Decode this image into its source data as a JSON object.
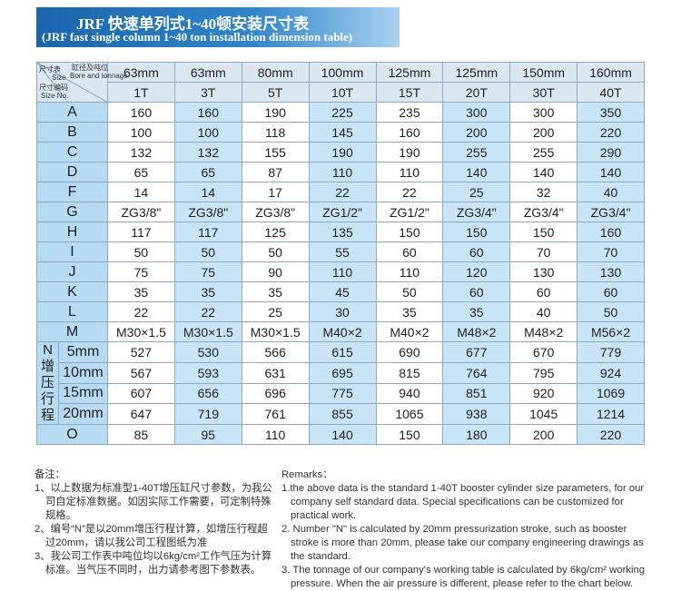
{
  "header": {
    "title": "JRF 快速单列式1~40顿安装尺寸表",
    "subtitle": "(JRF fast single column 1~40 ton installation dimension table)"
  },
  "table": {
    "corner": {
      "size_cn": "尺寸表",
      "size_en": "Size",
      "bore_cn": "缸径及吨位",
      "bore_en": "Bore and tonnage",
      "code_cn": "尺寸编码",
      "code_en": "Size No."
    },
    "bores": [
      "63mm",
      "63mm",
      "80mm",
      "100mm",
      "125mm",
      "125mm",
      "150mm",
      "160mm"
    ],
    "tonnages": [
      "1T",
      "3T",
      "5T",
      "10T",
      "15T",
      "20T",
      "30T",
      "40T"
    ],
    "rows": [
      {
        "label": "A",
        "values": [
          160,
          160,
          190,
          225,
          235,
          300,
          300,
          350
        ]
      },
      {
        "label": "B",
        "values": [
          100,
          100,
          118,
          145,
          160,
          200,
          200,
          220
        ]
      },
      {
        "label": "C",
        "values": [
          132,
          132,
          155,
          190,
          190,
          255,
          255,
          290
        ]
      },
      {
        "label": "D",
        "values": [
          65,
          65,
          87,
          110,
          110,
          140,
          140,
          140
        ]
      },
      {
        "label": "F",
        "values": [
          14,
          14,
          17,
          22,
          22,
          25,
          32,
          40
        ]
      },
      {
        "label": "G",
        "values": [
          "ZG3/8\"",
          "ZG3/8\"",
          "ZG3/8\"",
          "ZG1/2\"",
          "ZG1/2\"",
          "ZG3/4\"",
          "ZG3/4\"",
          "ZG3/4\""
        ]
      },
      {
        "label": "H",
        "values": [
          117,
          117,
          125,
          135,
          150,
          150,
          150,
          160
        ]
      },
      {
        "label": "I",
        "values": [
          50,
          50,
          50,
          55,
          60,
          60,
          70,
          70
        ]
      },
      {
        "label": "J",
        "values": [
          75,
          75,
          90,
          110,
          110,
          120,
          130,
          130
        ]
      },
      {
        "label": "K",
        "values": [
          35,
          35,
          35,
          45,
          50,
          60,
          60,
          60
        ]
      },
      {
        "label": "L",
        "values": [
          22,
          22,
          25,
          30,
          35,
          35,
          40,
          50
        ]
      },
      {
        "label": "M",
        "values": [
          "M30×1.5",
          "M30×1.5",
          "M30×1.5",
          "M40×2",
          "M40×2",
          "M48×2",
          "M48×2",
          "M56×2"
        ]
      }
    ],
    "stroke_group": {
      "label": "N增压行程",
      "rows": [
        {
          "label": "5mm",
          "values": [
            527,
            530,
            566,
            615,
            690,
            677,
            670,
            779
          ]
        },
        {
          "label": "10mm",
          "values": [
            567,
            593,
            631,
            695,
            815,
            764,
            795,
            924
          ]
        },
        {
          "label": "15mm",
          "values": [
            607,
            656,
            696,
            775,
            940,
            851,
            920,
            1069
          ]
        },
        {
          "label": "20mm",
          "values": [
            647,
            719,
            761,
            855,
            1065,
            938,
            1045,
            1214
          ]
        }
      ]
    },
    "last_row": {
      "label": "O",
      "values": [
        85,
        95,
        110,
        140,
        150,
        180,
        200,
        220
      ]
    }
  },
  "notes_cn": {
    "title": "备注：",
    "items": [
      "1、以上数据为标准型1-40T增压缸尺寸参数，为我公司自定标准数据。如因实际工作需要，可定制特殊规格。",
      "2、编号“N”是以20mm增压行程计算，如增压行程超过20mm，请以我公司工程图纸为准",
      "3、我公司工作表中吨位均以6kg/cm²工作气压为计算标准。当气压不同时，出力请参考图下参数表。"
    ]
  },
  "notes_en": {
    "title": "Remarks：",
    "items": [
      "1.the above data is the standard 1-40T booster cylinder size parameters, for our company self standard data. Special specifications can be customized for practical work.",
      "2. Number \"N\" is calculated by 20mm pressurization stroke, such as booster stroke is more than 20mm, please take our company engineering drawings as the standard.",
      "3. The tonnage of our company's working table is calculated by 6kg/cm² working pressure. When the air pressure is different, please refer to the chart below."
    ]
  }
}
